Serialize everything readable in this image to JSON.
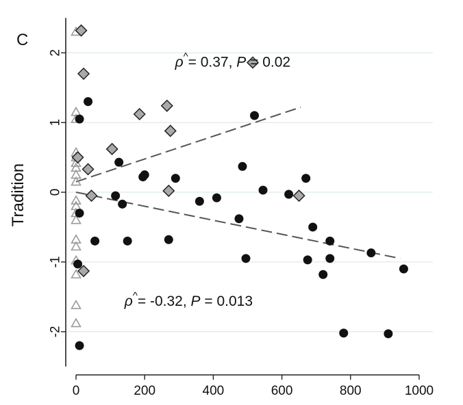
{
  "chart_data": {
    "type": "scatter",
    "panel_label": "C",
    "title": "",
    "xlabel": "",
    "ylabel": "Tradition",
    "xlim": [
      -30,
      1040
    ],
    "ylim": [
      -2.62,
      2.62
    ],
    "xticks": [
      0,
      200,
      400,
      600,
      800,
      1000
    ],
    "yticks": [
      -2,
      -1,
      0,
      1,
      2
    ],
    "xtick_labels": [
      "0",
      "200",
      "400",
      "600",
      "800",
      "1000"
    ],
    "ytick_labels": [
      "-2",
      "-1",
      "0",
      "1",
      "2"
    ],
    "grid": "horizontal",
    "legend": "none",
    "series": [
      {
        "marker": "triangle",
        "color": "#9a9a9a",
        "points": [
          [
            0,
            2.3
          ],
          [
            0,
            1.15
          ],
          [
            0,
            1.05
          ],
          [
            0,
            0.57
          ],
          [
            0,
            0.5
          ],
          [
            0,
            0.42
          ],
          [
            0,
            0.35
          ],
          [
            0,
            0.25
          ],
          [
            0,
            0.15
          ],
          [
            0,
            -0.12
          ],
          [
            0,
            -0.2
          ],
          [
            0,
            -0.3
          ],
          [
            0,
            -0.4
          ],
          [
            0,
            -0.68
          ],
          [
            0,
            -0.78
          ],
          [
            0,
            -0.98
          ],
          [
            0,
            -1.18
          ],
          [
            0,
            -1.62
          ],
          [
            0,
            -1.88
          ]
        ]
      },
      {
        "marker": "diamond",
        "color": "#a9a9a9",
        "points": [
          [
            15,
            2.32
          ],
          [
            22,
            1.7
          ],
          [
            5,
            0.5
          ],
          [
            35,
            0.33
          ],
          [
            45,
            -0.05
          ],
          [
            22,
            -1.13
          ],
          [
            105,
            0.62
          ],
          [
            185,
            1.12
          ],
          [
            265,
            1.24
          ],
          [
            275,
            0.88
          ],
          [
            270,
            0.02
          ],
          [
            515,
            1.86
          ],
          [
            650,
            -0.05
          ]
        ]
      },
      {
        "marker": "circle",
        "color": "#111111",
        "points": [
          [
            35,
            1.3
          ],
          [
            10,
            1.05
          ],
          [
            10,
            -0.3
          ],
          [
            5,
            -1.03
          ],
          [
            10,
            -2.2
          ],
          [
            55,
            -0.7
          ],
          [
            115,
            -0.05
          ],
          [
            125,
            0.43
          ],
          [
            135,
            -0.17
          ],
          [
            150,
            -0.7
          ],
          [
            195,
            0.22
          ],
          [
            200,
            0.25
          ],
          [
            270,
            -0.68
          ],
          [
            290,
            0.2
          ],
          [
            360,
            -0.13
          ],
          [
            410,
            -0.08
          ],
          [
            475,
            -0.38
          ],
          [
            485,
            0.37
          ],
          [
            495,
            -0.95
          ],
          [
            520,
            1.1
          ],
          [
            545,
            0.03
          ],
          [
            620,
            -0.03
          ],
          [
            670,
            0.2
          ],
          [
            675,
            -0.97
          ],
          [
            690,
            -0.5
          ],
          [
            720,
            -1.18
          ],
          [
            740,
            -0.7
          ],
          [
            740,
            -0.95
          ],
          [
            780,
            -2.02
          ],
          [
            860,
            -0.87
          ],
          [
            910,
            -2.03
          ],
          [
            955,
            -1.1
          ]
        ]
      }
    ],
    "trend_lines": [
      {
        "from": [
          0,
          0.15
        ],
        "to": [
          655,
          1.22
        ],
        "color": "#555555"
      },
      {
        "from": [
          0,
          0.0
        ],
        "to": [
          945,
          -0.95
        ],
        "color": "#555555"
      }
    ],
    "annotations": {
      "upper": {
        "rho": "ρ",
        "hat": "^",
        "rest": "= 0.37, ",
        "p": "P",
        "pval": " = 0.02",
        "x": 625,
        "y": 1.88
      },
      "lower": {
        "rho": "ρ",
        "hat": "^",
        "rest": "= -0.32, ",
        "p": "P",
        "pval": " = 0.013",
        "x": 515,
        "y": -1.55
      }
    }
  }
}
